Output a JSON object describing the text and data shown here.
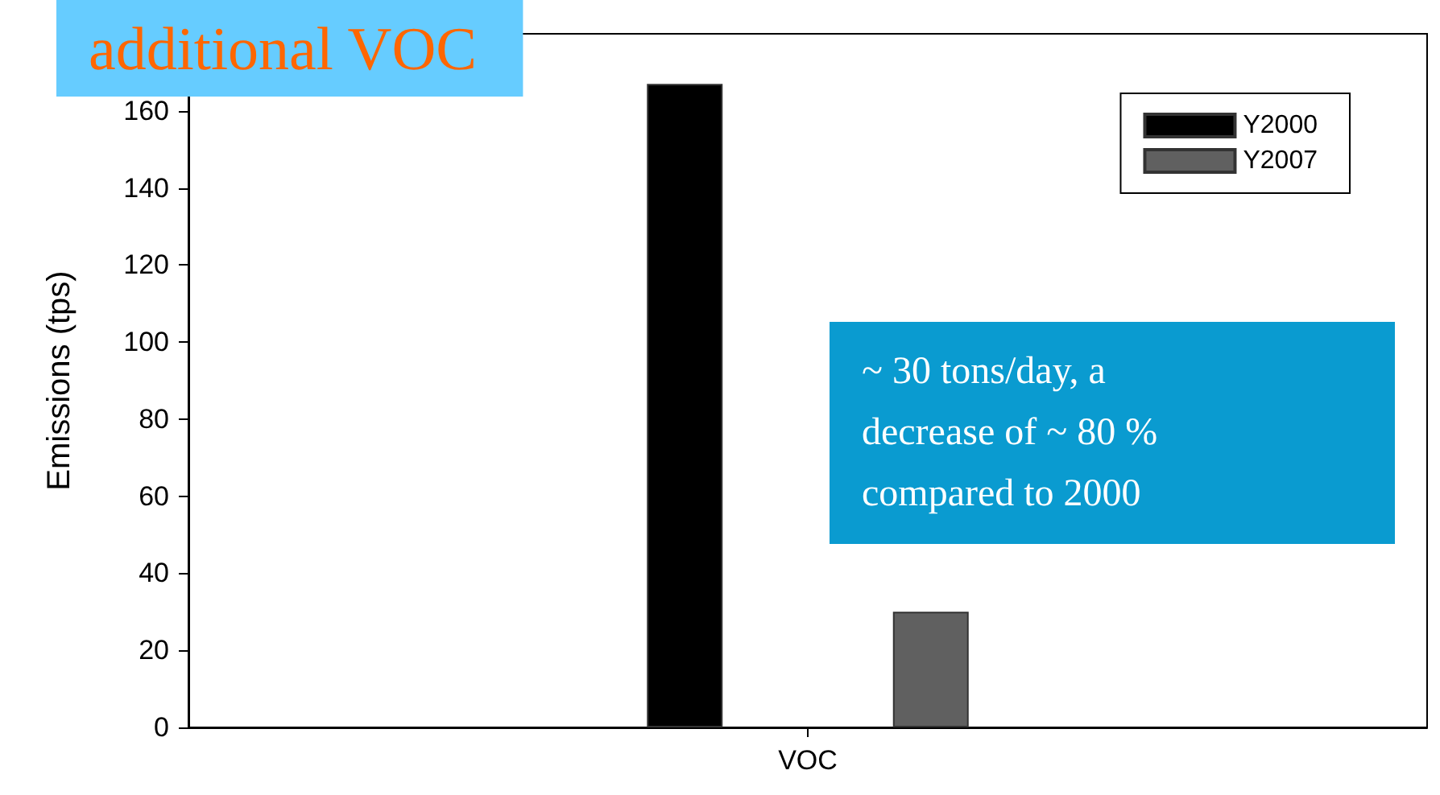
{
  "chart_data": {
    "type": "bar",
    "title": "additional VOC",
    "ylabel": "Emissions (tps)",
    "categories": [
      "VOC"
    ],
    "series": [
      {
        "name": "Y2000",
        "color": "#000000",
        "values": [
          167
        ]
      },
      {
        "name": "Y2007",
        "color": "#606060",
        "values": [
          30
        ]
      }
    ],
    "ylim": [
      0,
      180
    ],
    "yticks": [
      0,
      20,
      40,
      60,
      80,
      100,
      120,
      140,
      160
    ],
    "grid": false,
    "legend": "top right",
    "annotations": [
      "~ 30 tons/day, a decrease of ~ 80 % compared to 2000"
    ]
  }
}
